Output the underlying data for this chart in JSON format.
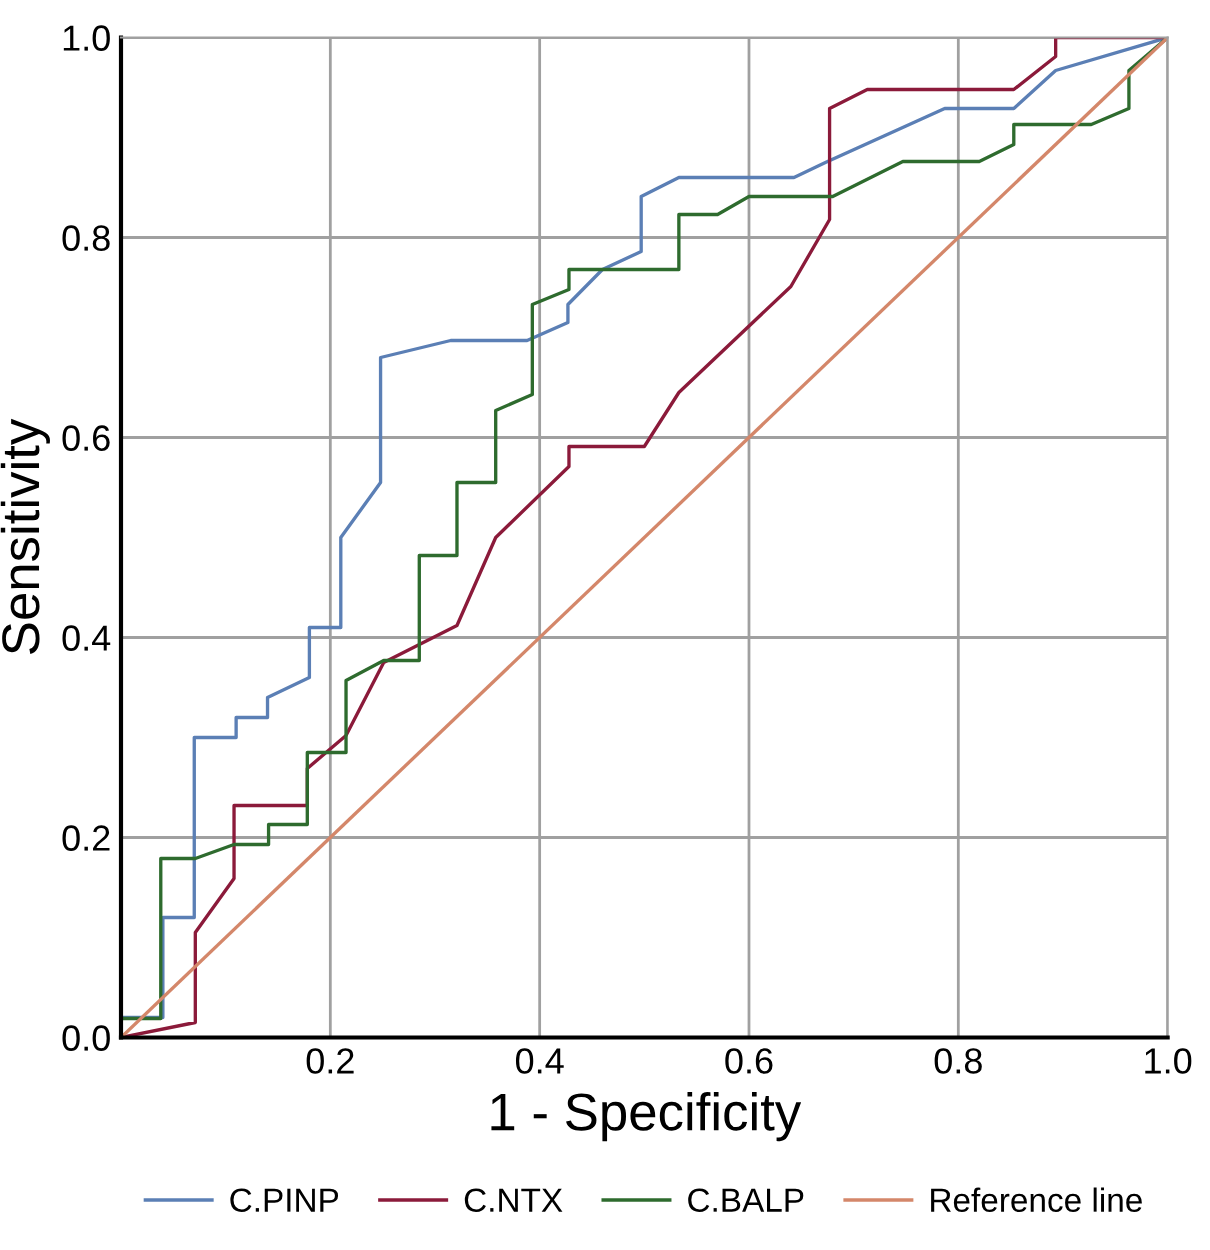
{
  "chart_data": {
    "type": "line",
    "xlabel": "1 - Specificity",
    "ylabel": "Sensitivity",
    "xlim": [
      0,
      1
    ],
    "ylim": [
      0,
      1
    ],
    "xticks": [
      {
        "value": 0.2,
        "label": "0.2"
      },
      {
        "value": 0.4,
        "label": "0.4"
      },
      {
        "value": 0.6,
        "label": "0.6"
      },
      {
        "value": 0.8,
        "label": "0.8"
      },
      {
        "value": 1.0,
        "label": "1.0"
      }
    ],
    "yticks": [
      {
        "value": 0,
        "label": "0.0"
      },
      {
        "value": 0.2,
        "label": "0.2"
      },
      {
        "value": 0.4,
        "label": "0.4"
      },
      {
        "value": 0.6,
        "label": "0.6"
      },
      {
        "value": 0.8,
        "label": "0.8"
      },
      {
        "value": 1.0,
        "label": "1.0"
      }
    ],
    "grid": true,
    "legend": "bottom",
    "line_style": "solid",
    "series": [
      {
        "name": "C.PINP",
        "color": "#5b7fb5",
        "x": [
          0,
          0,
          0.04,
          0.04,
          0.07,
          0.07,
          0.11,
          0.11,
          0.14,
          0.14,
          0.18,
          0.18,
          0.21,
          0.21,
          0.248,
          0.248,
          0.315,
          0.388,
          0.427,
          0.427,
          0.46,
          0.497,
          0.497,
          0.533,
          0.643,
          0.673,
          0.787,
          0.853,
          0.893,
          1
        ],
        "values": [
          0,
          0.02,
          0.02,
          0.12,
          0.12,
          0.3,
          0.3,
          0.32,
          0.32,
          0.34,
          0.36,
          0.41,
          0.41,
          0.5,
          0.555,
          0.68,
          0.697,
          0.697,
          0.715,
          0.733,
          0.768,
          0.786,
          0.841,
          0.86,
          0.86,
          0.875,
          0.929,
          0.929,
          0.967,
          1
        ]
      },
      {
        "name": "C.NTX",
        "color": "#8b1a3a",
        "x": [
          0,
          0.071,
          0.071,
          0.108,
          0.108,
          0.178,
          0.178,
          0.215,
          0.251,
          0.321,
          0.358,
          0.428,
          0.428,
          0.5,
          0.533,
          0.64,
          0.677,
          0.677,
          0.713,
          0.853,
          0.893,
          0.893,
          1
        ],
        "values": [
          0,
          0.015,
          0.105,
          0.159,
          0.232,
          0.232,
          0.269,
          0.302,
          0.375,
          0.412,
          0.5,
          0.571,
          0.591,
          0.591,
          0.645,
          0.751,
          0.818,
          0.929,
          0.948,
          0.948,
          0.981,
          1,
          1
        ]
      },
      {
        "name": "C.BALP",
        "color": "#2e6b2e",
        "x": [
          0,
          0,
          0.038,
          0.038,
          0.071,
          0.108,
          0.141,
          0.141,
          0.178,
          0.178,
          0.215,
          0.215,
          0.251,
          0.285,
          0.285,
          0.321,
          0.321,
          0.358,
          0.358,
          0.393,
          0.393,
          0.428,
          0.428,
          0.533,
          0.533,
          0.57,
          0.6,
          0.68,
          0.747,
          0.82,
          0.853,
          0.853,
          0.927,
          0.963,
          0.963,
          1
        ],
        "values": [
          0,
          0.019,
          0.019,
          0.179,
          0.179,
          0.193,
          0.193,
          0.213,
          0.213,
          0.285,
          0.285,
          0.357,
          0.377,
          0.377,
          0.482,
          0.482,
          0.555,
          0.555,
          0.627,
          0.643,
          0.733,
          0.748,
          0.768,
          0.768,
          0.823,
          0.823,
          0.841,
          0.841,
          0.876,
          0.876,
          0.893,
          0.913,
          0.913,
          0.929,
          0.967,
          1
        ]
      },
      {
        "name": "Reference line",
        "color": "#d4876a",
        "x": [
          0,
          1
        ],
        "values": [
          0,
          1
        ]
      }
    ]
  }
}
